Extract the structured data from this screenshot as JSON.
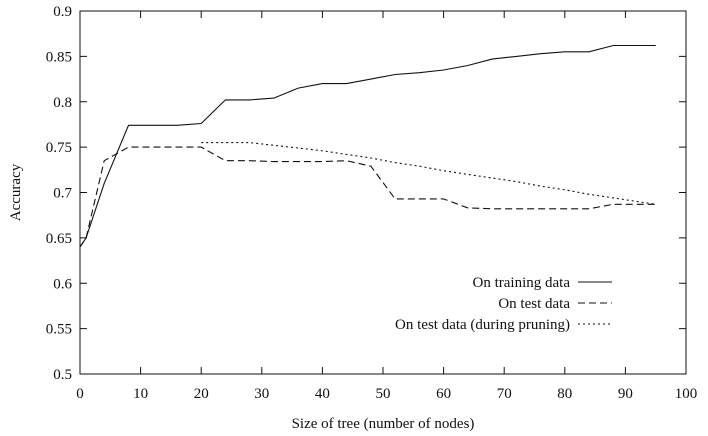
{
  "chart_data": {
    "type": "line",
    "xlabel": "Size of tree (number of nodes)",
    "ylabel": "Accuracy",
    "xlim": [
      0,
      100
    ],
    "ylim": [
      0.5,
      0.9
    ],
    "xticks": [
      0,
      10,
      20,
      30,
      40,
      50,
      60,
      70,
      80,
      90,
      100
    ],
    "yticks": [
      0.5,
      0.55,
      0.6,
      0.65,
      0.7,
      0.75,
      0.8,
      0.85,
      0.9
    ],
    "xtick_labels": [
      "0",
      "10",
      "20",
      "30",
      "40",
      "50",
      "60",
      "70",
      "80",
      "90",
      "100"
    ],
    "ytick_labels": [
      "0.5",
      "0.55",
      "0.6",
      "0.65",
      "0.7",
      "0.75",
      "0.8",
      "0.85",
      "0.9"
    ],
    "grid": false,
    "legend_position": "bottom-right",
    "series": [
      {
        "name": "On training data",
        "style": "solid",
        "x": [
          0,
          1,
          4,
          8,
          12,
          16,
          20,
          24,
          28,
          32,
          36,
          40,
          44,
          48,
          52,
          56,
          60,
          64,
          68,
          72,
          76,
          80,
          84,
          88,
          92,
          95
        ],
        "y": [
          0.64,
          0.65,
          0.71,
          0.774,
          0.774,
          0.774,
          0.776,
          0.802,
          0.802,
          0.804,
          0.815,
          0.82,
          0.82,
          0.825,
          0.83,
          0.832,
          0.835,
          0.84,
          0.847,
          0.85,
          0.853,
          0.855,
          0.855,
          0.862,
          0.862,
          0.862
        ]
      },
      {
        "name": "On test data",
        "style": "dashed",
        "x": [
          0,
          1,
          4,
          8,
          12,
          16,
          20,
          24,
          28,
          32,
          36,
          40,
          44,
          48,
          52,
          56,
          60,
          64,
          68,
          72,
          76,
          80,
          84,
          88,
          92,
          95
        ],
        "y": [
          0.64,
          0.65,
          0.735,
          0.75,
          0.75,
          0.75,
          0.75,
          0.735,
          0.735,
          0.734,
          0.734,
          0.734,
          0.735,
          0.729,
          0.693,
          0.693,
          0.693,
          0.683,
          0.682,
          0.682,
          0.682,
          0.682,
          0.682,
          0.687,
          0.687,
          0.687
        ]
      },
      {
        "name": "On test data (during pruning)",
        "style": "dotted",
        "x": [
          20,
          24,
          28,
          32,
          36,
          40,
          44,
          48,
          52,
          56,
          60,
          64,
          68,
          72,
          76,
          80,
          84,
          88,
          92,
          95
        ],
        "y": [
          0.755,
          0.755,
          0.755,
          0.752,
          0.749,
          0.746,
          0.742,
          0.738,
          0.733,
          0.729,
          0.724,
          0.72,
          0.716,
          0.712,
          0.707,
          0.703,
          0.698,
          0.694,
          0.69,
          0.687
        ]
      }
    ]
  }
}
